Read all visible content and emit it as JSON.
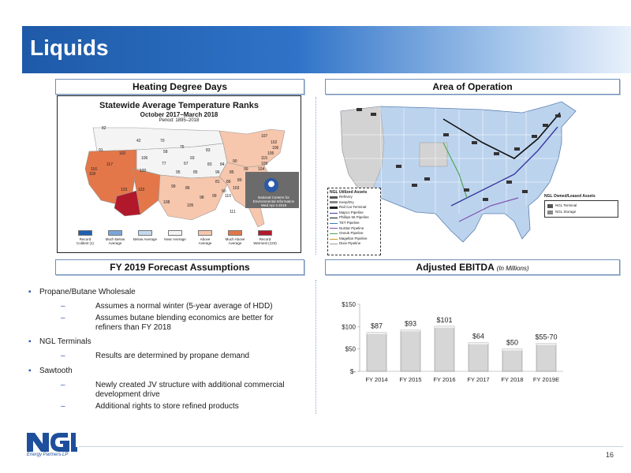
{
  "page": {
    "title": "Liquids",
    "page_number": "16"
  },
  "sections": {
    "heating_degree_days": "Heating Degree Days",
    "area_of_operation": "Area of Operation",
    "forecast_assumptions": "FY 2019 Forecast Assumptions",
    "adjusted_ebitda": "Adjusted EBITDA",
    "adjusted_ebitda_sub": "(In Millions)"
  },
  "hdd_map": {
    "title": "Statewide Average Temperature Ranks",
    "subtitle": "October 2017–March 2018",
    "period": "Period: 1895–2018",
    "noaa_text": "National Centers for Environmental Information Wed Apr 4 2018",
    "legend": [
      {
        "label": "Record Coldest (1)",
        "color": "#1f5fb0"
      },
      {
        "label": "Much Below Average",
        "color": "#7aa6d8"
      },
      {
        "label": "Below Average",
        "color": "#c4d8ee"
      },
      {
        "label": "Near Average",
        "color": "#f4f4f4"
      },
      {
        "label": "Above Average",
        "color": "#f6c6ad"
      },
      {
        "label": "Much Above Average",
        "color": "#e3774a"
      },
      {
        "label": "Record Warmest (123)",
        "color": "#b2182b"
      }
    ],
    "state_labels": [
      "82",
      "42",
      "70",
      "75",
      "83",
      "107",
      "102",
      "106",
      "105",
      "115",
      "91",
      "102",
      "58",
      "93",
      "109",
      "104",
      "102",
      "93",
      "117",
      "106",
      "77",
      "67",
      "83",
      "84",
      "90",
      "95",
      "85",
      "118",
      "96",
      "85",
      "99",
      "116",
      "120",
      "123",
      "122",
      "99",
      "86",
      "81",
      "86",
      "89",
      "90",
      "103",
      "108",
      "105",
      "98",
      "99",
      "110",
      "111"
    ]
  },
  "area_map": {
    "utilized_assets_title": "NGL Utilized Assets",
    "utilized_assets": [
      {
        "label": "Refinery",
        "color": "#555555"
      },
      {
        "label": "Keep/Dry",
        "color": "#888888"
      },
      {
        "label": "Rail Car Terminal",
        "color": "#222222"
      },
      {
        "label": "Mapco Pipeline",
        "color": "#3a3aa0"
      },
      {
        "label": "Phillips 66 Pipeline",
        "color": "#111111"
      },
      {
        "label": "TET Pipeline",
        "color": "#3c79c4"
      },
      {
        "label": "NuStar Pipeline",
        "color": "#7f4fb0"
      },
      {
        "label": "Oneok Pipeline",
        "color": "#4caa55"
      },
      {
        "label": "Magellan Pipeline",
        "color": "#c79b2d"
      },
      {
        "label": "Dixie Pipeline",
        "color": "#9a9a9a"
      }
    ],
    "owned_assets_title": "NGL Owned/Leased Assets",
    "owned_assets": [
      "NGL Terminal",
      "NGL Storage"
    ]
  },
  "bullets": [
    {
      "level": 1,
      "text": "Propane/Butane Wholesale"
    },
    {
      "level": 2,
      "text": "Assumes a normal winter (5-year average of HDD)"
    },
    {
      "level": 2,
      "text": "Assumes butane blending economics are better for refiners than FY 2018"
    },
    {
      "level": 1,
      "text": "NGL Terminals"
    },
    {
      "level": 2,
      "text": "Results are determined by propane demand"
    },
    {
      "level": 1,
      "text": "Sawtooth"
    },
    {
      "level": 2,
      "text": "Newly created JV structure with additional commercial development drive"
    },
    {
      "level": 2,
      "text": "Additional rights to store refined products"
    }
  ],
  "chart_data": {
    "type": "bar",
    "title": "Adjusted EBITDA",
    "categories": [
      "FY 2014",
      "FY 2015",
      "FY 2016",
      "FY 2017",
      "FY 2018",
      "FY 2019E"
    ],
    "values": [
      87,
      93,
      101,
      64,
      50,
      62.5
    ],
    "data_labels": [
      "$87",
      "$93",
      "$101",
      "$64",
      "$50",
      "$55-70"
    ],
    "yticks": [
      0,
      50,
      100,
      150
    ],
    "ytick_labels": [
      "$-",
      "$50",
      "$100",
      "$150"
    ],
    "ylim": [
      0,
      150
    ],
    "grid": false,
    "legend": "none",
    "bar_color": "#d6d6d6"
  }
}
